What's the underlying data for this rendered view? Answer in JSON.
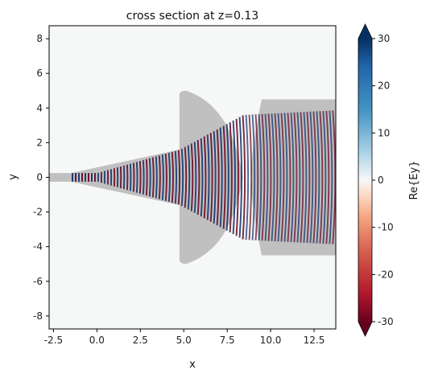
{
  "chart_data": {
    "type": "heatmap",
    "title": "cross section at z=0.13",
    "xlabel": "x",
    "ylabel": "y",
    "xlim": [
      -2.75,
      13.75
    ],
    "ylim": [
      -8.75,
      8.75
    ],
    "x_ticks": [
      "-2.5",
      "0.0",
      "2.5",
      "5.0",
      "7.5",
      "10.0",
      "12.5"
    ],
    "y_ticks": [
      "-8",
      "-6",
      "-4",
      "-2",
      "0",
      "2",
      "4",
      "6",
      "8"
    ],
    "colorbar": {
      "label": "Re{Ey}",
      "colormap": "RdBu",
      "vmin": -30,
      "vmax": 30,
      "ticks": [
        "-30",
        "-20",
        "-10",
        "0",
        "10",
        "20",
        "30"
      ],
      "extend": "both"
    },
    "structures": [
      {
        "name": "input waveguide",
        "x": [
          -2.75,
          -1.5
        ],
        "y": [
          -0.25,
          0.25
        ]
      },
      {
        "name": "taper",
        "x": [
          -1.5,
          4.75
        ],
        "y_start": [
          -0.25,
          0.25
        ],
        "y_end": [
          -1.6,
          1.6
        ]
      },
      {
        "name": "lens",
        "x": [
          4.75,
          8.4
        ],
        "y": [
          -5.0,
          5.0
        ]
      },
      {
        "name": "slab",
        "x": [
          9.3,
          13.75
        ],
        "y": [
          -4.5,
          4.5
        ]
      }
    ],
    "grid": false
  },
  "colors": {
    "structure": "#c0c0c0",
    "positive": "#08306b",
    "negative": "#67001f",
    "zero": "#f7f7f7"
  }
}
